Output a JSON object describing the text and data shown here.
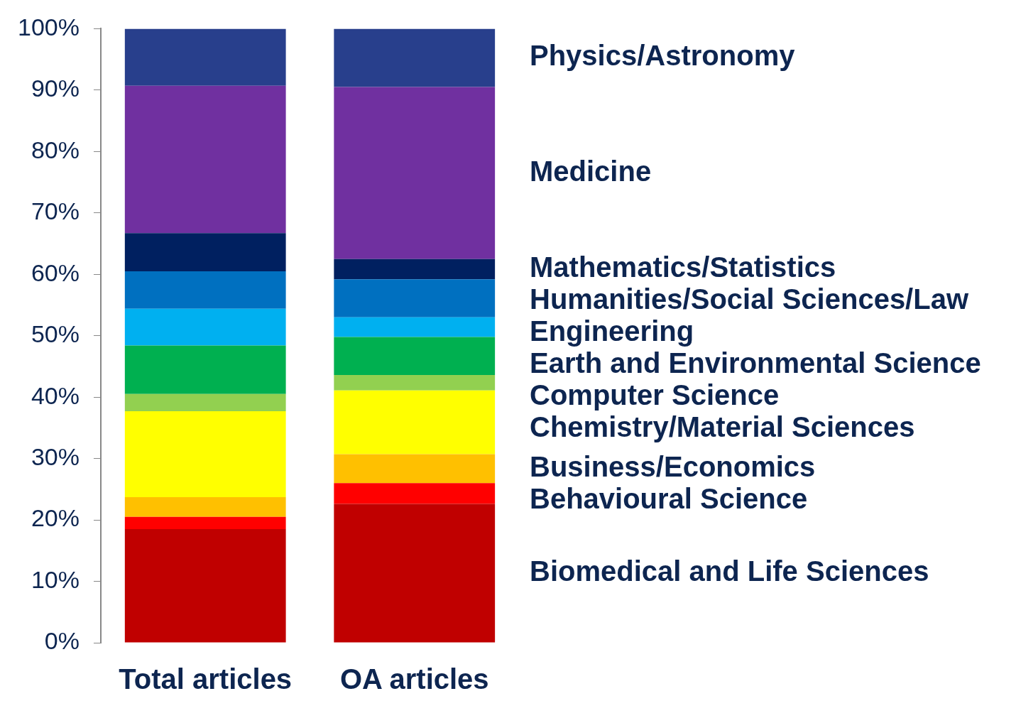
{
  "chart_data": {
    "type": "bar",
    "stacked": true,
    "categories": [
      "Total articles",
      "OA articles"
    ],
    "series": [
      {
        "name": "Biomedical and Life Sciences",
        "color": "#c00000",
        "values": [
          18.5,
          22.6
        ]
      },
      {
        "name": "Behavioural Science",
        "color": "#ff0000",
        "values": [
          2.0,
          3.4
        ]
      },
      {
        "name": "Business/Economics",
        "color": "#ffc000",
        "values": [
          3.2,
          4.7
        ]
      },
      {
        "name": "Chemistry/Material Sciences",
        "color": "#ffff00",
        "values": [
          14.0,
          10.4
        ]
      },
      {
        "name": "Computer Science",
        "color": "#92d050",
        "values": [
          2.8,
          2.5
        ]
      },
      {
        "name": "Earth and Environmental Science",
        "color": "#00b050",
        "values": [
          7.9,
          6.2
        ]
      },
      {
        "name": "Engineering",
        "color": "#00b0f0",
        "values": [
          6.0,
          3.2
        ]
      },
      {
        "name": "Humanities/Social Sciences/Law",
        "color": "#0070c0",
        "values": [
          6.1,
          6.2
        ]
      },
      {
        "name": "Mathematics/Statistics",
        "color": "#002060",
        "values": [
          6.2,
          3.3
        ]
      },
      {
        "name": "Medicine",
        "color": "#7030a0",
        "values": [
          24.0,
          28.0
        ]
      },
      {
        "name": "Physics/Astronomy",
        "color": "#283f8c",
        "values": [
          9.3,
          9.5
        ]
      }
    ],
    "ylim": [
      0,
      100
    ],
    "yticks": [
      {
        "value": 0,
        "label": "0%"
      },
      {
        "value": 10,
        "label": "10%"
      },
      {
        "value": 20,
        "label": "20%"
      },
      {
        "value": 30,
        "label": "30%"
      },
      {
        "value": 40,
        "label": "40%"
      },
      {
        "value": 50,
        "label": "50%"
      },
      {
        "value": 60,
        "label": "60%"
      },
      {
        "value": 70,
        "label": "70%"
      },
      {
        "value": 80,
        "label": "80%"
      },
      {
        "value": 90,
        "label": "90%"
      },
      {
        "value": 100,
        "label": "100%"
      }
    ],
    "grid": false,
    "legend": "right"
  }
}
